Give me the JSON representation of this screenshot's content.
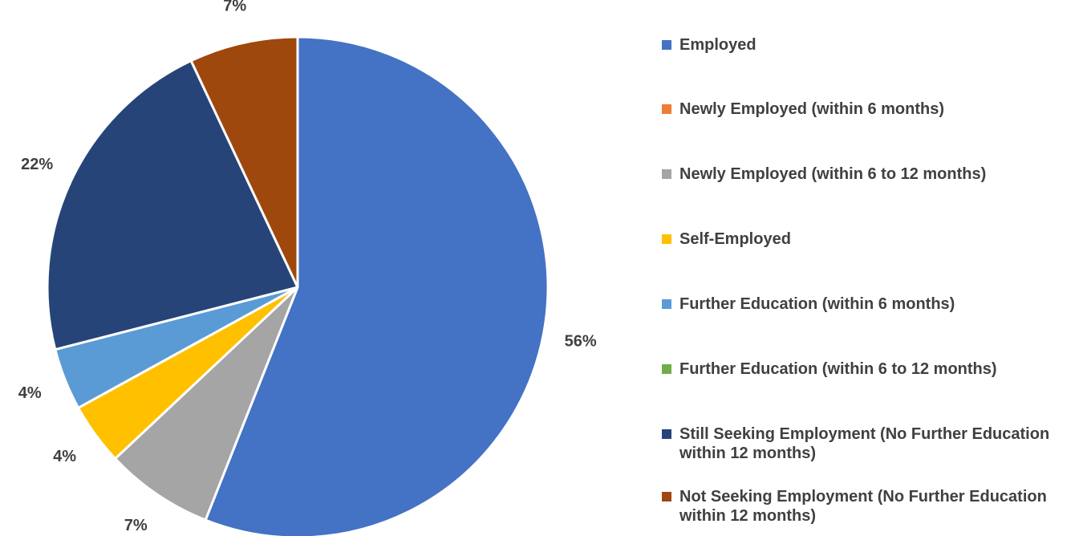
{
  "chart_data": {
    "type": "pie",
    "slices": [
      {
        "name": "Employed",
        "value": 56,
        "label": "56%",
        "color": "#4472C4"
      },
      {
        "name": "Newly Employed (within 6 months)",
        "value": 0,
        "label": "",
        "color": "#ED7D31"
      },
      {
        "name": "Newly Employed (within 6 to 12 months)",
        "value": 7,
        "label": "7%",
        "color": "#A5A5A5"
      },
      {
        "name": "Self-Employed",
        "value": 4,
        "label": "4%",
        "color": "#FFC000"
      },
      {
        "name": "Further Education (within 6 months)",
        "value": 4,
        "label": "4%",
        "color": "#5B9BD5"
      },
      {
        "name": "Further Education (within 6 to 12 months)",
        "value": 0,
        "label": "",
        "color": "#70AD47"
      },
      {
        "name": "Still Seeking Employment (No Further Education within 12 months)",
        "value": 22,
        "label": "22%",
        "color": "#264478"
      },
      {
        "name": "Not Seeking Employment (No Further Education within 12 months)",
        "value": 7,
        "label": "7%",
        "color": "#9E480E"
      }
    ],
    "legend_position": "right",
    "start_angle": "top, clockwise"
  },
  "legend": {
    "items": [
      {
        "text": "Employed",
        "color": "#4472C4"
      },
      {
        "text": "Newly Employed (within 6 months)",
        "color": "#ED7D31"
      },
      {
        "text": "Newly Employed (within 6 to 12 months)",
        "color": "#A5A5A5"
      },
      {
        "text": "Self-Employed",
        "color": "#FFC000"
      },
      {
        "text": "Further Education (within 6 months)",
        "color": "#5B9BD5"
      },
      {
        "text": "Further Education (within 6 to 12 months)",
        "color": "#70AD47"
      },
      {
        "text": "Still Seeking Employment (No Further Education within 12 months)",
        "color": "#264478"
      },
      {
        "text": "Not Seeking Employment (No Further Education within 12 months)",
        "color": "#9E480E"
      }
    ]
  }
}
